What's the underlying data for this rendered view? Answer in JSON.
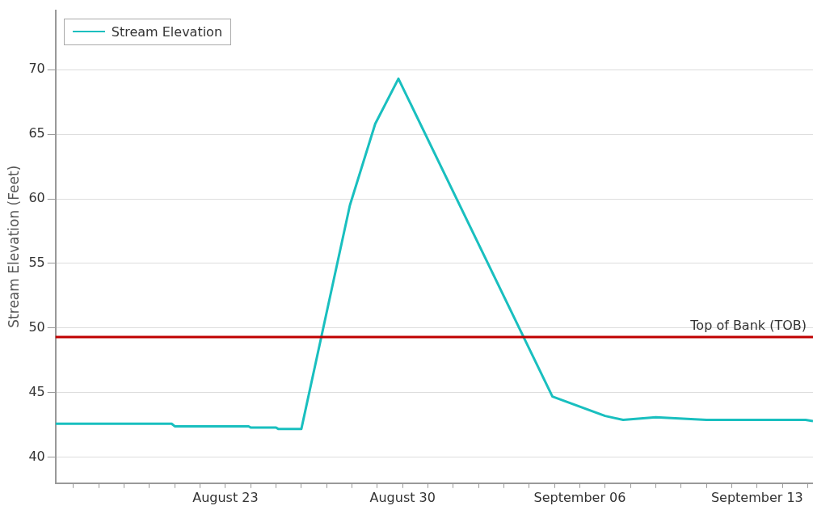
{
  "chart_data": {
    "type": "line",
    "ylabel": "Stream Elevation (Feet)",
    "x": [
      "--08-16T07:00",
      "--08-20T21:00",
      "--08-21T00:00",
      "--08-23T22:00",
      "--08-24T00:00",
      "--08-25T00:00",
      "--08-25T02:00",
      "--08-26T00:00",
      "--08-27T22:00",
      "--08-28T22:00",
      "--08-29T20:00",
      "--09-04T22:00",
      "--09-07T00:00",
      "--09-07T17:00",
      "--09-09T00:00",
      "--09-11T00:00",
      "--09-14T22:00",
      "--09-15T05:00"
    ],
    "series": [
      {
        "name": "Stream Elevation",
        "color": "#19bfbf",
        "values": [
          42.6,
          42.6,
          42.4,
          42.4,
          42.3,
          42.3,
          42.2,
          42.2,
          59.5,
          65.8,
          69.3,
          44.7,
          43.2,
          42.9,
          43.1,
          42.9,
          42.9,
          42.8
        ]
      }
    ],
    "xlim": [
      "--08-16T07:00",
      "--09-15T05:00"
    ],
    "xticks": [
      {
        "value": "--08-17",
        "label": null
      },
      {
        "value": "--08-18",
        "label": null
      },
      {
        "value": "--08-19",
        "label": null
      },
      {
        "value": "--08-20",
        "label": null
      },
      {
        "value": "--08-21",
        "label": null
      },
      {
        "value": "--08-22",
        "label": null
      },
      {
        "value": "--08-23",
        "label": "August 23"
      },
      {
        "value": "--08-24",
        "label": null
      },
      {
        "value": "--08-25",
        "label": null
      },
      {
        "value": "--08-26",
        "label": null
      },
      {
        "value": "--08-27",
        "label": null
      },
      {
        "value": "--08-28",
        "label": null
      },
      {
        "value": "--08-29",
        "label": null
      },
      {
        "value": "--08-30",
        "label": "August 30"
      },
      {
        "value": "--08-31",
        "label": null
      },
      {
        "value": "--09-01",
        "label": null
      },
      {
        "value": "--09-02",
        "label": null
      },
      {
        "value": "--09-03",
        "label": null
      },
      {
        "value": "--09-04",
        "label": null
      },
      {
        "value": "--09-05",
        "label": null
      },
      {
        "value": "--09-06",
        "label": "September 06"
      },
      {
        "value": "--09-07",
        "label": null
      },
      {
        "value": "--09-08",
        "label": null
      },
      {
        "value": "--09-09",
        "label": null
      },
      {
        "value": "--09-10",
        "label": null
      },
      {
        "value": "--09-11",
        "label": null
      },
      {
        "value": "--09-12",
        "label": null
      },
      {
        "value": "--09-13",
        "label": "September 13"
      },
      {
        "value": "--09-14",
        "label": null
      },
      {
        "value": "--09-15",
        "label": null
      }
    ],
    "ylim": [
      38,
      74.6
    ],
    "yticks": [
      40,
      45,
      50,
      55,
      60,
      65,
      70
    ],
    "ref_lines": [
      {
        "axis": "y",
        "value": 49.3,
        "label": "Top of Bank (TOB)",
        "color": "#c00000"
      }
    ],
    "grid": "y",
    "legend": "top left",
    "marker": "none",
    "line_style": "solid"
  }
}
